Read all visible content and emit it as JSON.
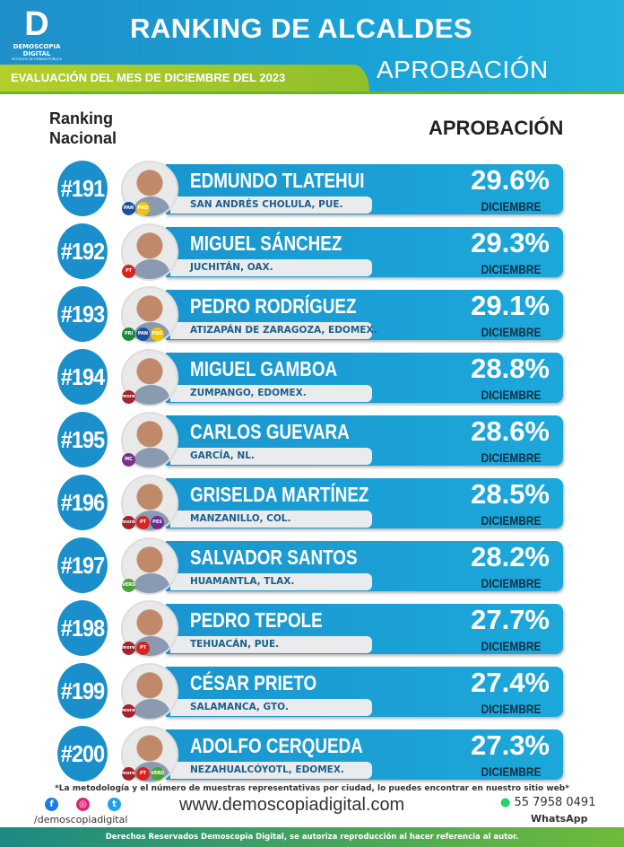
{
  "brand": {
    "logo_letter": "D",
    "name": "DEMOSCOPIA DIGITAL",
    "tagline": "ESTUDIOS DE OPINIÓN PÚBLICA"
  },
  "header": {
    "title": "RANKING DE ALCALDES",
    "band": "EVALUACIÓN DEL MES DE DICIEMBRE DEL 2023",
    "subtitle": "APROBACIÓN"
  },
  "columns": {
    "ranking": "Ranking Nacional",
    "approval": "APROBACIÓN"
  },
  "colors": {
    "blue": "#1a96cf",
    "green": "#b4cf2a",
    "dark": "#0d2f44"
  },
  "rows": [
    {
      "rank": "#191",
      "name": "EDMUNDO TLATEHUI",
      "city": "SAN ANDRÉS CHOLULA, PUE.",
      "pct": "29.6%",
      "month": "DICIEMBRE",
      "parties": [
        {
          "label": "PAN",
          "color": "#1c4fa0"
        },
        {
          "label": "PRD",
          "color": "#f2c300"
        }
      ]
    },
    {
      "rank": "#192",
      "name": "MIGUEL SÁNCHEZ",
      "city": "JUCHITÁN, OAX.",
      "pct": "29.3%",
      "month": "DICIEMBRE",
      "parties": [
        {
          "label": "PT",
          "color": "#d8231f"
        }
      ]
    },
    {
      "rank": "#193",
      "name": "PEDRO RODRÍGUEZ",
      "city": "ATIZAPÁN DE ZARAGOZA, EDOMEX.",
      "pct": "29.1%",
      "month": "DICIEMBRE",
      "parties": [
        {
          "label": "PRI",
          "color": "#1a8a3c"
        },
        {
          "label": "PAN",
          "color": "#1c4fa0"
        },
        {
          "label": "PRD",
          "color": "#f2c300"
        }
      ]
    },
    {
      "rank": "#194",
      "name": "MIGUEL GAMBOA",
      "city": "ZUMPANGO, EDOMEX.",
      "pct": "28.8%",
      "month": "DICIEMBRE",
      "parties": [
        {
          "label": "morena",
          "color": "#a4232c"
        }
      ]
    },
    {
      "rank": "#195",
      "name": "CARLOS GUEVARA",
      "city": "GARCÍA, NL.",
      "pct": "28.6%",
      "month": "DICIEMBRE",
      "parties": [
        {
          "label": "MC",
          "color": "#7b2f8f"
        }
      ]
    },
    {
      "rank": "#196",
      "name": "GRISELDA MARTÍNEZ",
      "city": "MANZANILLO, COL.",
      "pct": "28.5%",
      "month": "DICIEMBRE",
      "parties": [
        {
          "label": "morena",
          "color": "#a4232c"
        },
        {
          "label": "PT",
          "color": "#d8231f"
        },
        {
          "label": "PES",
          "color": "#6b2d8f"
        }
      ]
    },
    {
      "rank": "#197",
      "name": "SALVADOR SANTOS",
      "city": "HUAMANTLA, TLAX.",
      "pct": "28.2%",
      "month": "DICIEMBRE",
      "parties": [
        {
          "label": "VERDE",
          "color": "#4aa339"
        }
      ]
    },
    {
      "rank": "#198",
      "name": "PEDRO TEPOLE",
      "city": "TEHUACÁN, PUE.",
      "pct": "27.7%",
      "month": "DICIEMBRE",
      "parties": [
        {
          "label": "morena",
          "color": "#a4232c"
        },
        {
          "label": "PT",
          "color": "#d8231f"
        }
      ]
    },
    {
      "rank": "#199",
      "name": "CÉSAR PRIETO",
      "city": "SALAMANCA, GTO.",
      "pct": "27.4%",
      "month": "DICIEMBRE",
      "parties": [
        {
          "label": "morena",
          "color": "#a4232c"
        }
      ]
    },
    {
      "rank": "#200",
      "name": "ADOLFO CERQUEDA",
      "city": "NEZAHUALCÓYOTL, EDOMEX.",
      "pct": "27.3%",
      "month": "DICIEMBRE",
      "parties": [
        {
          "label": "morena",
          "color": "#a4232c"
        },
        {
          "label": "PT",
          "color": "#d8231f"
        },
        {
          "label": "VERDE",
          "color": "#4aa339"
        }
      ]
    }
  ],
  "footer": {
    "note": "*La metodología y el número de muestras representativas por ciudad, lo puedes encontrar en nuestro sitio web*",
    "social_icons": [
      "facebook-icon",
      "instagram-icon",
      "twitter-icon"
    ],
    "handle": "/demoscopiadigital",
    "website": "www.demoscopiadigital.com",
    "phone": "55 7958 0491",
    "phone_label": "WhatsApp",
    "rights": "Derechos Reservados Demoscopia Digital, se autoriza reproducción al hacer referencia al autor."
  }
}
